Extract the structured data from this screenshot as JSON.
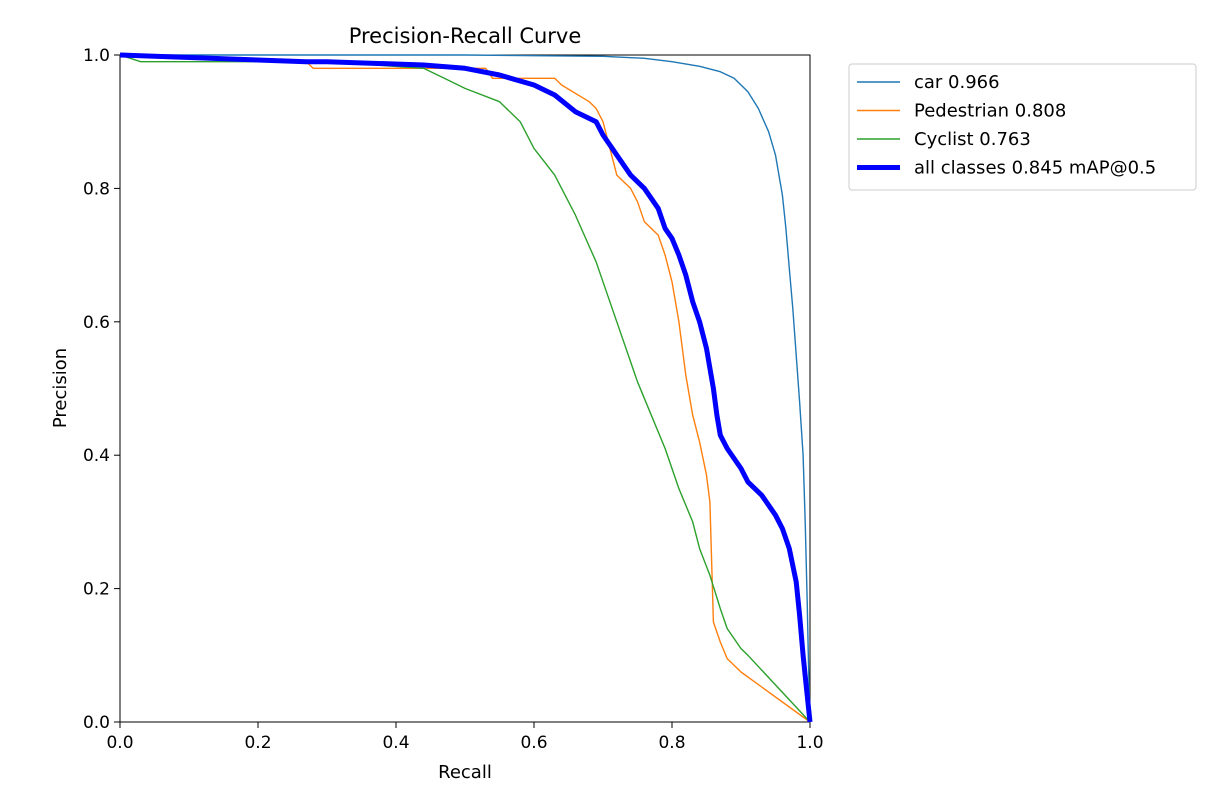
{
  "chart_data": {
    "type": "line",
    "title": "Precision-Recall Curve",
    "xlabel": "Recall",
    "ylabel": "Precision",
    "xlim": [
      0,
      1
    ],
    "ylim": [
      0,
      1
    ],
    "x_ticks": [
      "0.0",
      "0.2",
      "0.4",
      "0.6",
      "0.8",
      "1.0"
    ],
    "y_ticks": [
      "0.0",
      "0.2",
      "0.4",
      "0.6",
      "0.8",
      "1.0"
    ],
    "grid": false,
    "legend_position": "outside-top-right",
    "series": [
      {
        "name": "car 0.966",
        "color": "#1f77b4",
        "points": [
          [
            0.0,
            1.0
          ],
          [
            0.3,
            1.0
          ],
          [
            0.5,
            1.0
          ],
          [
            0.6,
            0.999
          ],
          [
            0.7,
            0.998
          ],
          [
            0.76,
            0.995
          ],
          [
            0.8,
            0.99
          ],
          [
            0.84,
            0.983
          ],
          [
            0.87,
            0.975
          ],
          [
            0.89,
            0.965
          ],
          [
            0.91,
            0.945
          ],
          [
            0.925,
            0.92
          ],
          [
            0.94,
            0.885
          ],
          [
            0.95,
            0.85
          ],
          [
            0.96,
            0.79
          ],
          [
            0.965,
            0.74
          ],
          [
            0.97,
            0.68
          ],
          [
            0.975,
            0.62
          ],
          [
            0.98,
            0.55
          ],
          [
            0.985,
            0.48
          ],
          [
            0.99,
            0.4
          ],
          [
            0.993,
            0.3
          ],
          [
            0.996,
            0.18
          ],
          [
            0.998,
            0.08
          ],
          [
            1.0,
            0.0
          ]
        ]
      },
      {
        "name": "Pedestrian 0.808",
        "color": "#ff7f0e",
        "points": [
          [
            0.0,
            1.0
          ],
          [
            0.27,
            0.99
          ],
          [
            0.28,
            0.98
          ],
          [
            0.53,
            0.98
          ],
          [
            0.54,
            0.965
          ],
          [
            0.63,
            0.965
          ],
          [
            0.64,
            0.955
          ],
          [
            0.68,
            0.93
          ],
          [
            0.69,
            0.92
          ],
          [
            0.7,
            0.9
          ],
          [
            0.71,
            0.86
          ],
          [
            0.72,
            0.82
          ],
          [
            0.74,
            0.8
          ],
          [
            0.75,
            0.78
          ],
          [
            0.76,
            0.75
          ],
          [
            0.78,
            0.73
          ],
          [
            0.79,
            0.7
          ],
          [
            0.8,
            0.66
          ],
          [
            0.81,
            0.6
          ],
          [
            0.82,
            0.52
          ],
          [
            0.83,
            0.46
          ],
          [
            0.84,
            0.42
          ],
          [
            0.85,
            0.37
          ],
          [
            0.855,
            0.33
          ],
          [
            0.86,
            0.15
          ],
          [
            0.87,
            0.12
          ],
          [
            0.88,
            0.095
          ],
          [
            0.9,
            0.075
          ],
          [
            1.0,
            0.0
          ]
        ]
      },
      {
        "name": "Cyclist 0.763",
        "color": "#2ca02c",
        "points": [
          [
            0.0,
            1.0
          ],
          [
            0.03,
            0.99
          ],
          [
            0.3,
            0.99
          ],
          [
            0.44,
            0.98
          ],
          [
            0.47,
            0.965
          ],
          [
            0.5,
            0.95
          ],
          [
            0.55,
            0.93
          ],
          [
            0.58,
            0.9
          ],
          [
            0.6,
            0.86
          ],
          [
            0.63,
            0.82
          ],
          [
            0.66,
            0.76
          ],
          [
            0.69,
            0.69
          ],
          [
            0.71,
            0.63
          ],
          [
            0.73,
            0.57
          ],
          [
            0.75,
            0.51
          ],
          [
            0.77,
            0.46
          ],
          [
            0.79,
            0.41
          ],
          [
            0.81,
            0.35
          ],
          [
            0.83,
            0.3
          ],
          [
            0.84,
            0.26
          ],
          [
            0.855,
            0.22
          ],
          [
            0.87,
            0.17
          ],
          [
            0.88,
            0.14
          ],
          [
            0.9,
            0.11
          ],
          [
            0.91,
            0.1
          ],
          [
            1.0,
            0.0
          ]
        ]
      },
      {
        "name": "all classes 0.845 mAP@0.5",
        "color": "#0000ff",
        "points": [
          [
            0.0,
            1.0
          ],
          [
            0.27,
            0.99
          ],
          [
            0.3,
            0.99
          ],
          [
            0.44,
            0.985
          ],
          [
            0.5,
            0.98
          ],
          [
            0.55,
            0.97
          ],
          [
            0.6,
            0.955
          ],
          [
            0.63,
            0.94
          ],
          [
            0.66,
            0.915
          ],
          [
            0.69,
            0.9
          ],
          [
            0.7,
            0.88
          ],
          [
            0.72,
            0.85
          ],
          [
            0.74,
            0.82
          ],
          [
            0.76,
            0.8
          ],
          [
            0.78,
            0.77
          ],
          [
            0.79,
            0.74
          ],
          [
            0.8,
            0.725
          ],
          [
            0.81,
            0.7
          ],
          [
            0.82,
            0.67
          ],
          [
            0.83,
            0.63
          ],
          [
            0.84,
            0.6
          ],
          [
            0.85,
            0.56
          ],
          [
            0.86,
            0.5
          ],
          [
            0.865,
            0.46
          ],
          [
            0.87,
            0.43
          ],
          [
            0.88,
            0.41
          ],
          [
            0.9,
            0.38
          ],
          [
            0.91,
            0.36
          ],
          [
            0.93,
            0.34
          ],
          [
            0.95,
            0.31
          ],
          [
            0.96,
            0.29
          ],
          [
            0.97,
            0.26
          ],
          [
            0.98,
            0.21
          ],
          [
            0.985,
            0.16
          ],
          [
            0.99,
            0.1
          ],
          [
            0.995,
            0.05
          ],
          [
            1.0,
            0.0
          ]
        ]
      }
    ]
  }
}
